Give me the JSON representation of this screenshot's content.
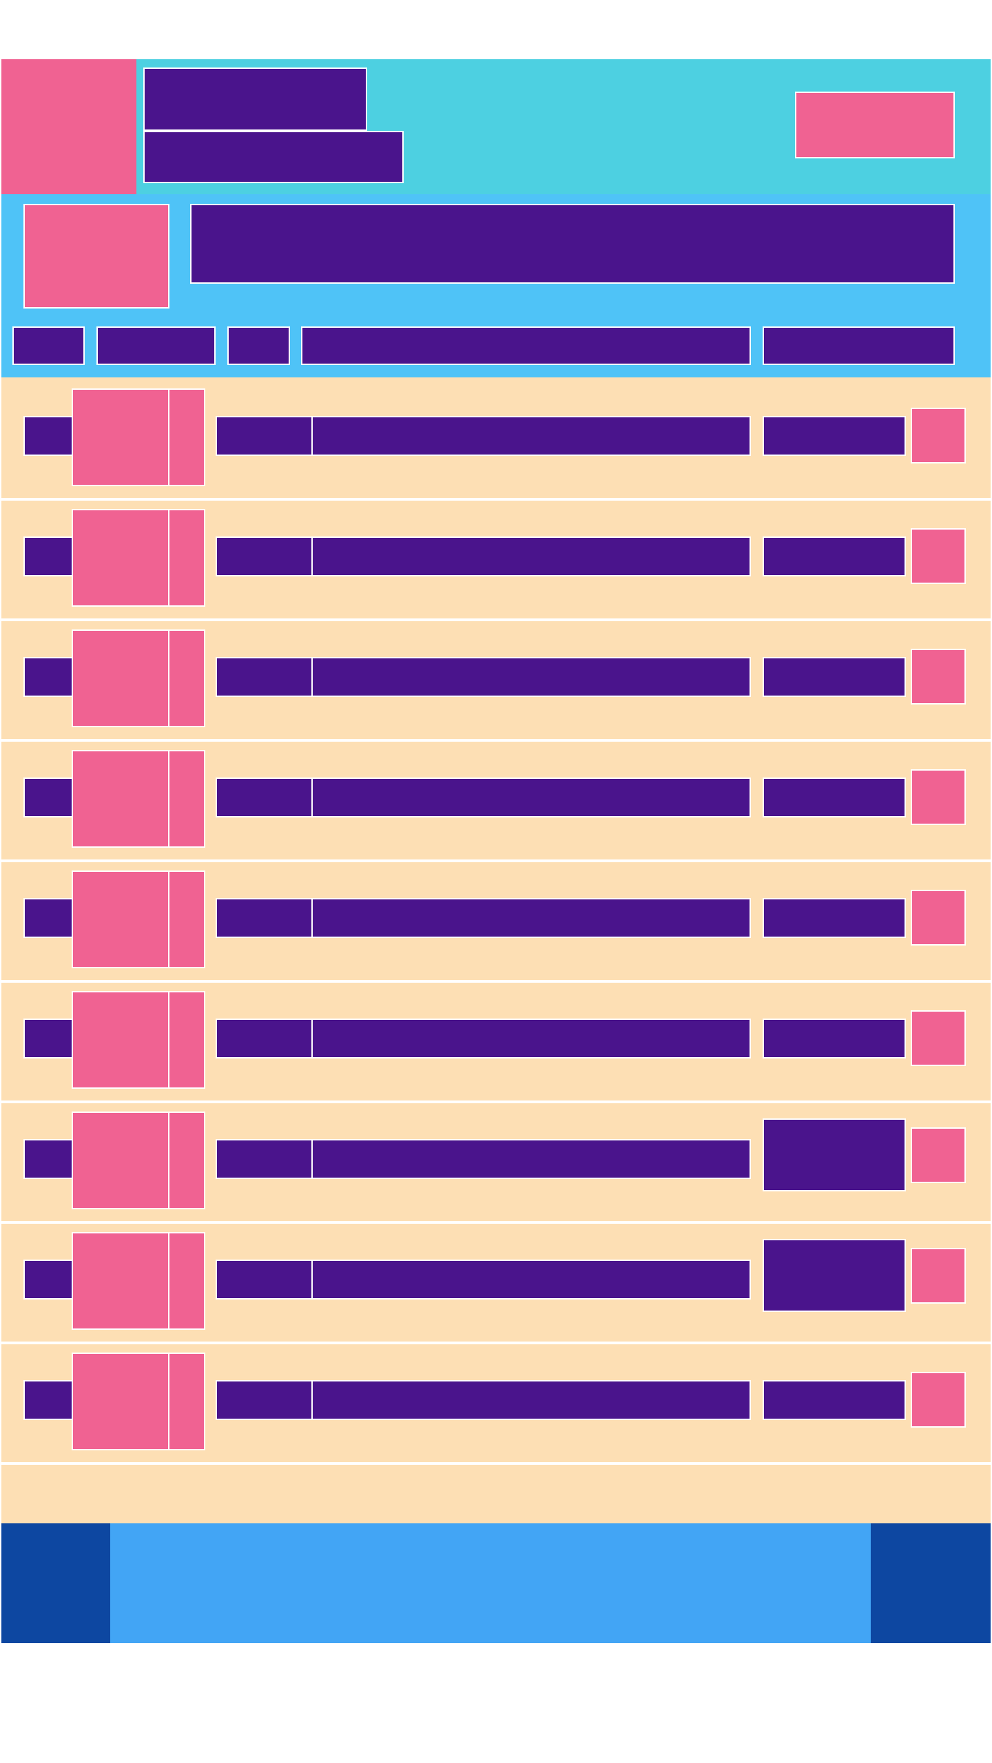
{
  "colors": {
    "header_bg": "#4dd0e1",
    "info_bg": "#4fc3f7",
    "list_bg": "#fddfb4",
    "footer_bg": "#42a5f5",
    "footer_side": "#0d47a1",
    "accent_pink": "#f06292",
    "accent_purple": "#4a148c"
  },
  "header": {
    "nav_icon": "menu-icon",
    "title": "",
    "subtitle": "",
    "action_label": ""
  },
  "info": {
    "image_icon": "image-placeholder-icon",
    "headline": "",
    "columns": [
      "",
      "",
      "",
      "",
      ""
    ]
  },
  "rows": [
    {
      "index": "",
      "thumb_icon": "thumbnail-icon",
      "code": "",
      "name": "",
      "value": "",
      "action_icon": "action-icon"
    },
    {
      "index": "",
      "thumb_icon": "thumbnail-icon",
      "code": "",
      "name": "",
      "value": "",
      "action_icon": "action-icon"
    },
    {
      "index": "",
      "thumb_icon": "thumbnail-icon",
      "code": "",
      "name": "",
      "value": "",
      "action_icon": "action-icon"
    },
    {
      "index": "",
      "thumb_icon": "thumbnail-icon",
      "code": "",
      "name": "",
      "value": "",
      "action_icon": "action-icon"
    },
    {
      "index": "",
      "thumb_icon": "thumbnail-icon",
      "code": "",
      "name": "",
      "value": "",
      "action_icon": "action-icon"
    },
    {
      "index": "",
      "thumb_icon": "thumbnail-icon",
      "code": "",
      "name": "",
      "value": "",
      "action_icon": "action-icon"
    },
    {
      "index": "",
      "thumb_icon": "thumbnail-icon",
      "code": "",
      "name": "",
      "value": "",
      "action_icon": "action-icon"
    },
    {
      "index": "",
      "thumb_icon": "thumbnail-icon",
      "code": "",
      "name": "",
      "value": "",
      "action_icon": "action-icon"
    },
    {
      "index": "",
      "thumb_icon": "thumbnail-icon",
      "code": "",
      "name": "",
      "value": "",
      "action_icon": "action-icon"
    }
  ],
  "footer": {
    "left_icon": "back-icon",
    "center_label": "",
    "right_icon": "forward-icon"
  }
}
